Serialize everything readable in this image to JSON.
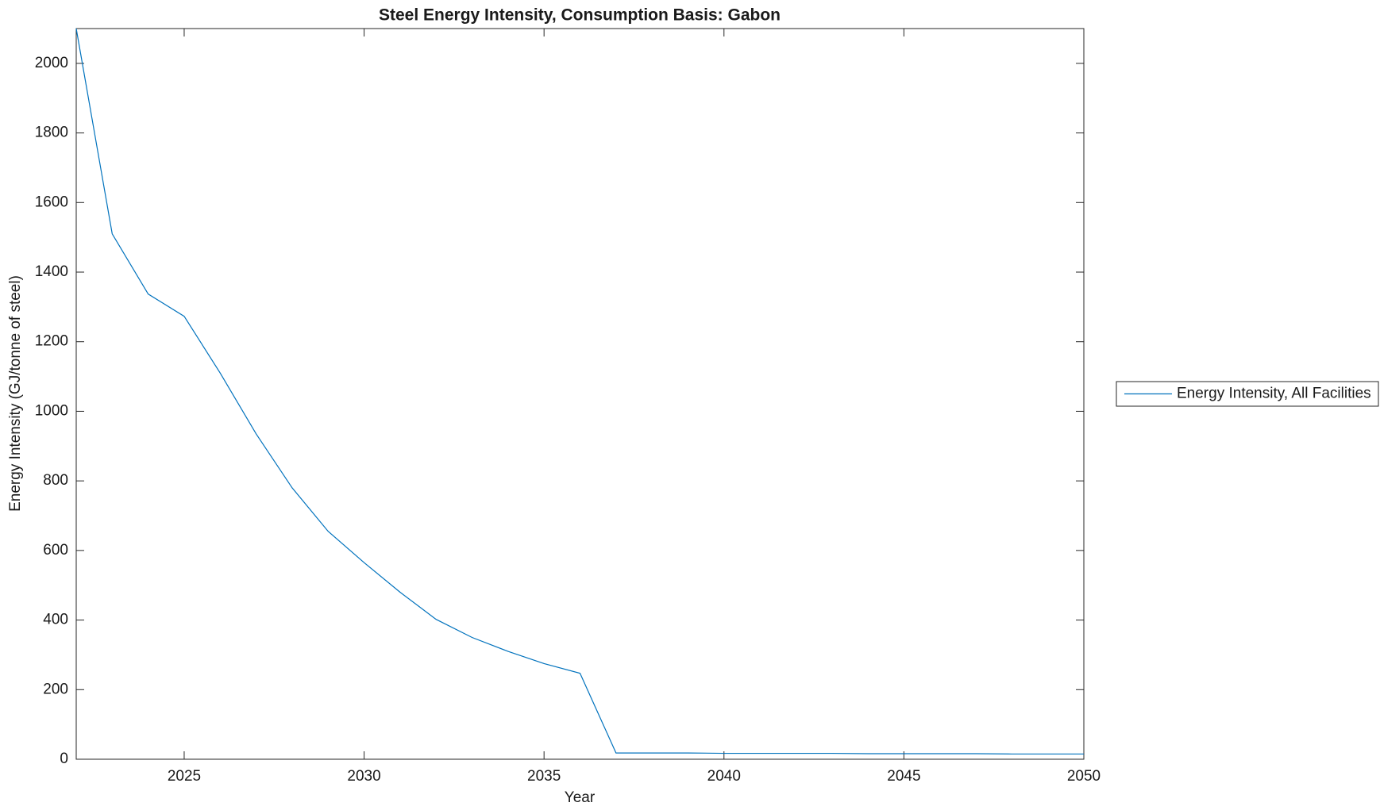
{
  "chart_data": {
    "type": "line",
    "title": "Steel Energy Intensity, Consumption Basis: Gabon",
    "x_label": "Year",
    "y_label": "Energy Intensity (GJ/tonne of steel)",
    "x": [
      2022,
      2023,
      2024,
      2025,
      2026,
      2027,
      2028,
      2029,
      2030,
      2031,
      2032,
      2033,
      2034,
      2035,
      2036,
      2037,
      2038,
      2039,
      2040,
      2041,
      2042,
      2043,
      2044,
      2045,
      2046,
      2047,
      2048,
      2049,
      2050
    ],
    "series": [
      {
        "name": "Energy Intensity, All Facilities",
        "color": "#0072bd",
        "values": [
          2100,
          1510,
          1337,
          1273,
          1110,
          935,
          780,
          655,
          565,
          480,
          402,
          350,
          310,
          275,
          247,
          18,
          18,
          18,
          17,
          17,
          17,
          17,
          16,
          16,
          16,
          16,
          15,
          15,
          15
        ]
      }
    ],
    "xlim": [
      2022,
      2050
    ],
    "xticks": [
      2025,
      2030,
      2035,
      2040,
      2045,
      2050
    ],
    "ylim": [
      0,
      2100
    ],
    "yticks": [
      0,
      200,
      400,
      600,
      800,
      1000,
      1200,
      1400,
      1600,
      1800,
      2000
    ],
    "grid": false,
    "legend_position": "right"
  }
}
